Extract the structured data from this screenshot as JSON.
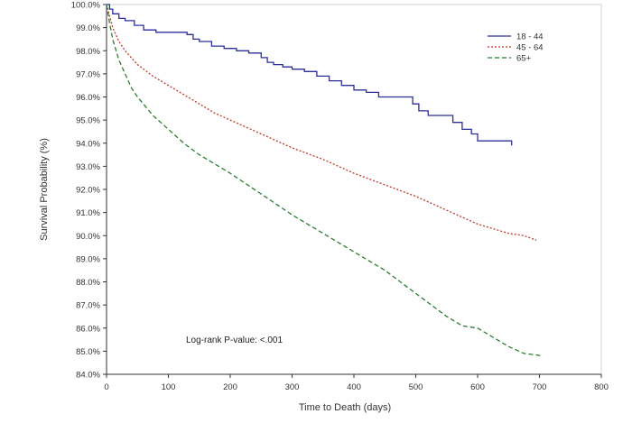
{
  "chart_data": {
    "type": "line",
    "xlabel": "Time to Death (days)",
    "ylabel": "Survival Probability (%)",
    "xlim": [
      0,
      800
    ],
    "ylim": [
      84.0,
      100.0
    ],
    "x_ticks": [
      0,
      100,
      200,
      300,
      400,
      500,
      600,
      700,
      800
    ],
    "y_ticks": [
      84.0,
      85.0,
      86.0,
      87.0,
      88.0,
      89.0,
      90.0,
      91.0,
      92.0,
      93.0,
      94.0,
      95.0,
      96.0,
      97.0,
      98.0,
      99.0,
      100.0
    ],
    "y_tick_suffix": "%",
    "grid": false,
    "legend_position": "top-right",
    "annotation": "Log-rank P-value: <.001",
    "series": [
      {
        "name": "18 - 44",
        "color": "#2b2f9c",
        "dash": "solid",
        "step": true,
        "points": [
          [
            0,
            100.0
          ],
          [
            5,
            99.8
          ],
          [
            10,
            99.6
          ],
          [
            20,
            99.4
          ],
          [
            30,
            99.3
          ],
          [
            45,
            99.1
          ],
          [
            60,
            98.9
          ],
          [
            80,
            98.8
          ],
          [
            100,
            98.8
          ],
          [
            130,
            98.7
          ],
          [
            140,
            98.5
          ],
          [
            150,
            98.4
          ],
          [
            170,
            98.2
          ],
          [
            190,
            98.1
          ],
          [
            210,
            98.0
          ],
          [
            230,
            97.9
          ],
          [
            250,
            97.7
          ],
          [
            260,
            97.5
          ],
          [
            270,
            97.4
          ],
          [
            285,
            97.3
          ],
          [
            300,
            97.2
          ],
          [
            320,
            97.1
          ],
          [
            340,
            96.9
          ],
          [
            360,
            96.7
          ],
          [
            380,
            96.5
          ],
          [
            400,
            96.3
          ],
          [
            420,
            96.2
          ],
          [
            440,
            96.0
          ],
          [
            470,
            96.0
          ],
          [
            490,
            96.0
          ],
          [
            495,
            95.7
          ],
          [
            505,
            95.4
          ],
          [
            520,
            95.2
          ],
          [
            560,
            94.9
          ],
          [
            575,
            94.6
          ],
          [
            590,
            94.4
          ],
          [
            600,
            94.1
          ],
          [
            655,
            94.1
          ],
          [
            655,
            93.9
          ]
        ]
      },
      {
        "name": "45 - 64",
        "color": "#c0392b",
        "dash": "dotted",
        "step": false,
        "points": [
          [
            0,
            100.0
          ],
          [
            5,
            99.5
          ],
          [
            10,
            99.0
          ],
          [
            20,
            98.4
          ],
          [
            30,
            98.0
          ],
          [
            50,
            97.4
          ],
          [
            75,
            96.9
          ],
          [
            100,
            96.5
          ],
          [
            125,
            96.1
          ],
          [
            150,
            95.7
          ],
          [
            175,
            95.3
          ],
          [
            200,
            95.0
          ],
          [
            250,
            94.4
          ],
          [
            300,
            93.8
          ],
          [
            350,
            93.3
          ],
          [
            400,
            92.7
          ],
          [
            450,
            92.2
          ],
          [
            500,
            91.7
          ],
          [
            550,
            91.1
          ],
          [
            575,
            90.8
          ],
          [
            600,
            90.5
          ],
          [
            625,
            90.3
          ],
          [
            650,
            90.1
          ],
          [
            675,
            90.0
          ],
          [
            695,
            89.8
          ]
        ]
      },
      {
        "name": "65+",
        "color": "#2e7d32",
        "dash": "dashed",
        "step": false,
        "points": [
          [
            0,
            100.0
          ],
          [
            5,
            99.2
          ],
          [
            10,
            98.5
          ],
          [
            20,
            97.6
          ],
          [
            30,
            97.0
          ],
          [
            40,
            96.4
          ],
          [
            50,
            96.0
          ],
          [
            75,
            95.2
          ],
          [
            100,
            94.6
          ],
          [
            125,
            94.0
          ],
          [
            150,
            93.5
          ],
          [
            175,
            93.1
          ],
          [
            200,
            92.7
          ],
          [
            250,
            91.8
          ],
          [
            300,
            90.9
          ],
          [
            350,
            90.1
          ],
          [
            400,
            89.3
          ],
          [
            450,
            88.5
          ],
          [
            500,
            87.5
          ],
          [
            550,
            86.5
          ],
          [
            575,
            86.1
          ],
          [
            600,
            86.0
          ],
          [
            625,
            85.6
          ],
          [
            650,
            85.2
          ],
          [
            675,
            84.9
          ],
          [
            705,
            84.8
          ]
        ]
      }
    ]
  }
}
